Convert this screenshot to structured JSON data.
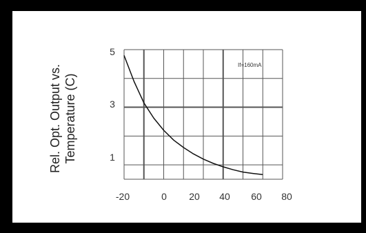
{
  "chart_data": {
    "type": "line",
    "ylabel_lines": [
      "Rel. Opt. Output vs.",
      "Temperature (C)"
    ],
    "xlabel": "",
    "x_ticks": [
      -20,
      0,
      20,
      40,
      60,
      80
    ],
    "y_ticks": [
      1,
      3,
      5
    ],
    "xlim": [
      -10,
      70
    ],
    "ylim": [
      0.5,
      5
    ],
    "grid": true,
    "annotation": "If=160mA",
    "series": [
      {
        "x": [
          -10,
          -5,
          0,
          5,
          10,
          15,
          20,
          25,
          30,
          35,
          40,
          45,
          50,
          55,
          60
        ],
        "y": [
          4.8,
          3.9,
          3.15,
          2.62,
          2.2,
          1.86,
          1.6,
          1.38,
          1.2,
          1.05,
          0.93,
          0.83,
          0.75,
          0.7,
          0.66
        ]
      }
    ]
  },
  "colors": {
    "background": "#000000",
    "panel": "#ffffff",
    "grid": "#555555",
    "curve": "#111111"
  }
}
